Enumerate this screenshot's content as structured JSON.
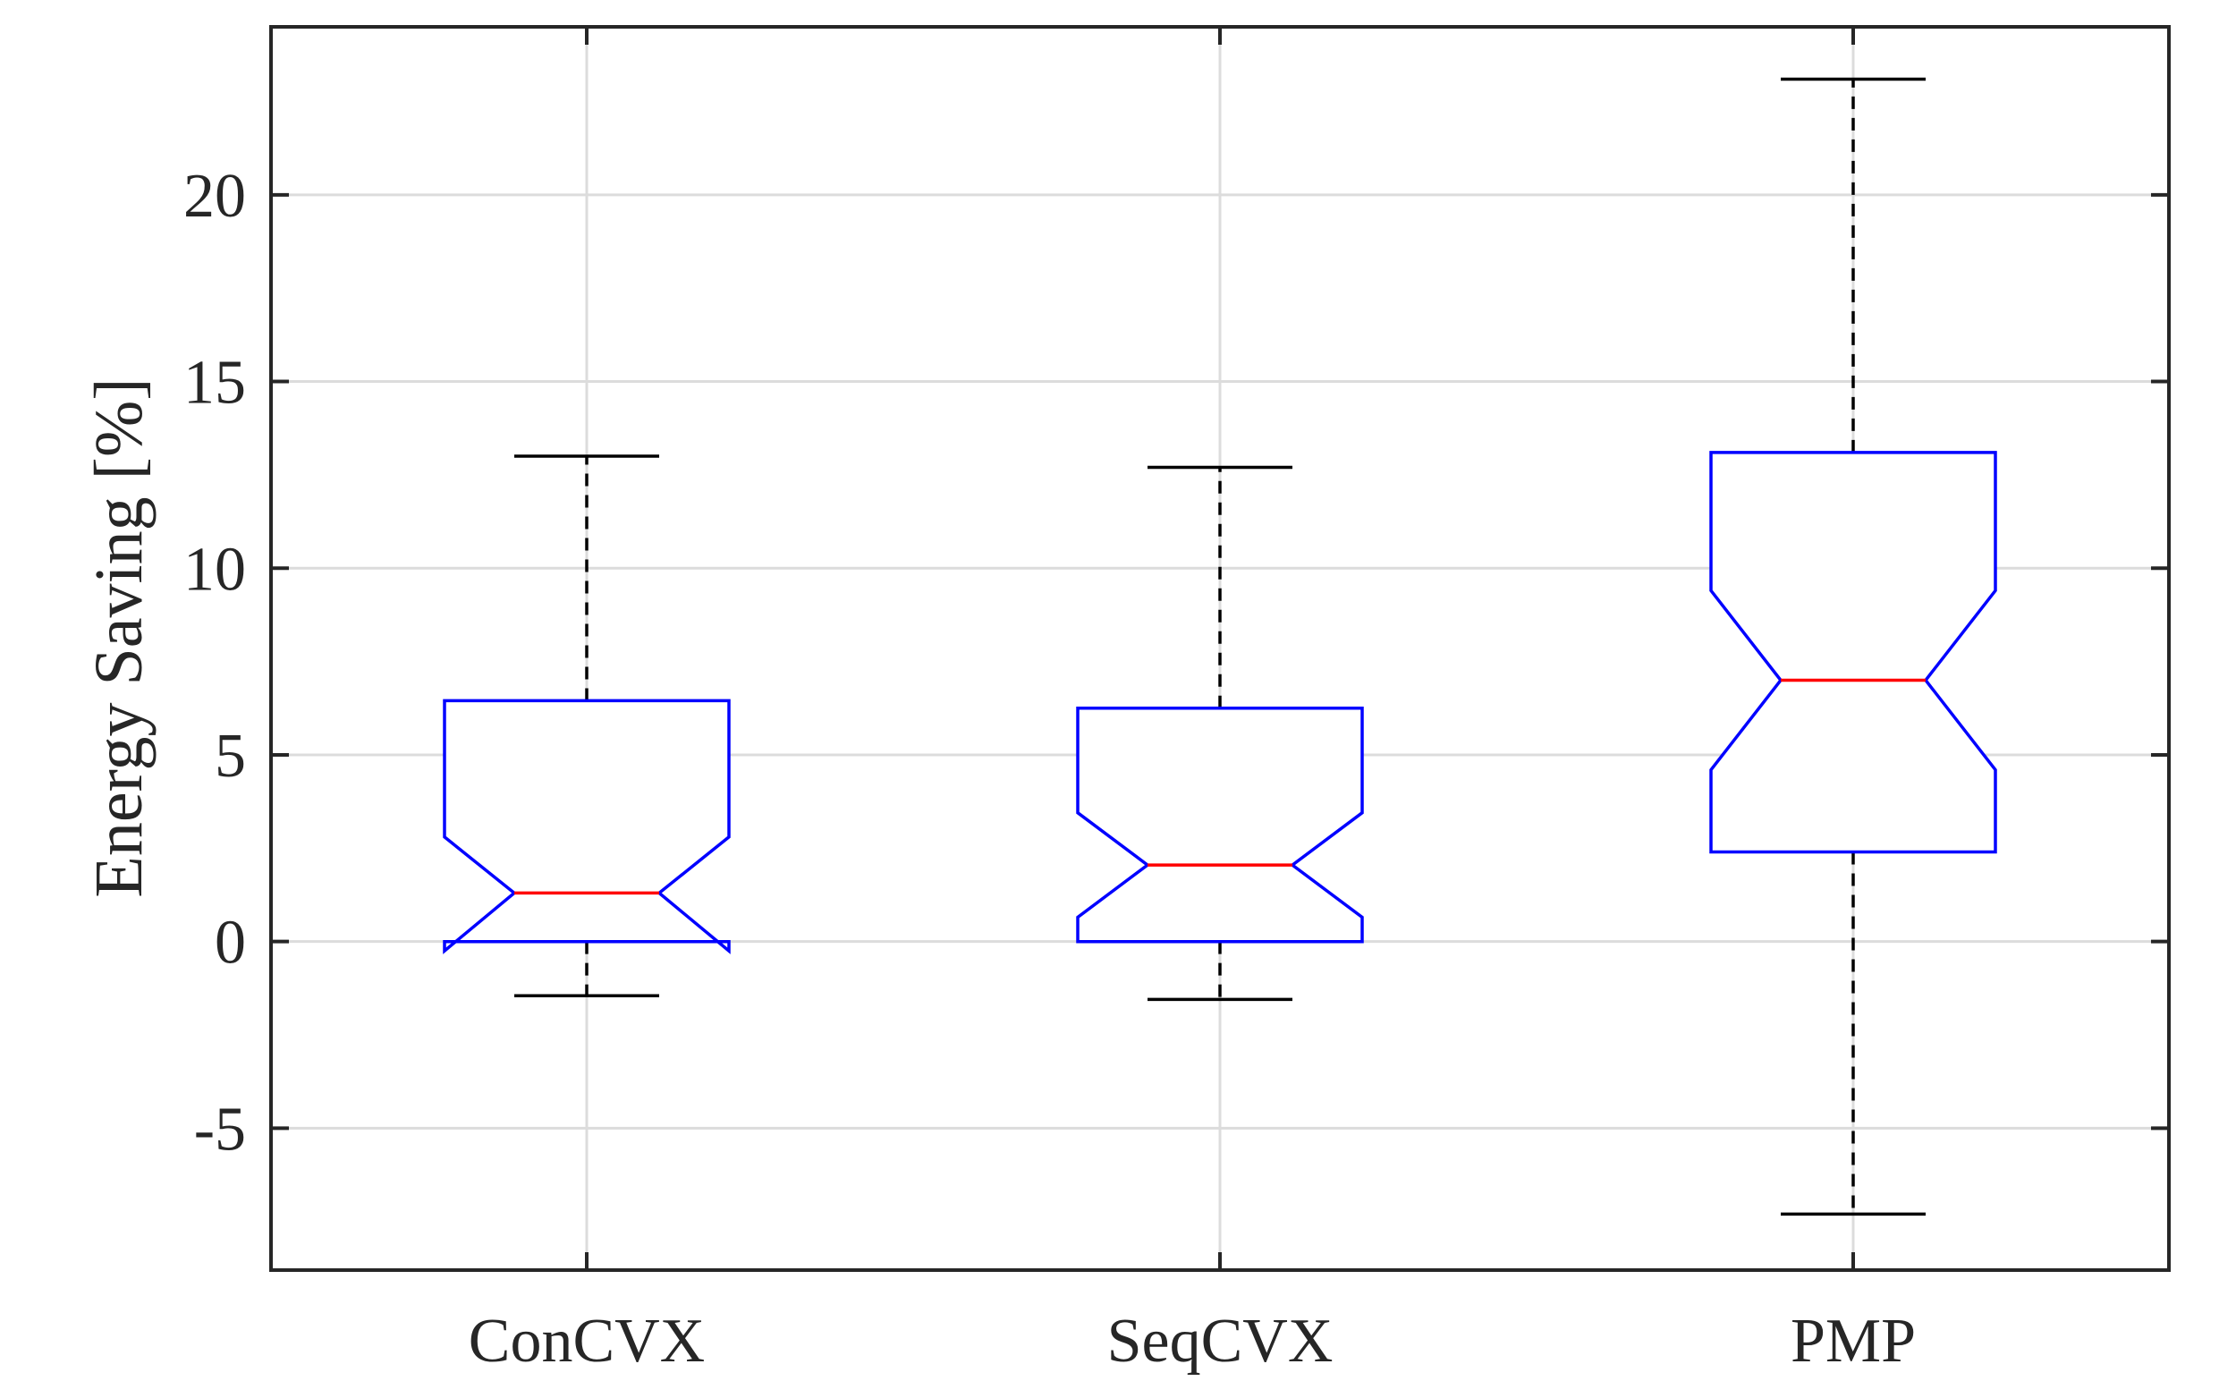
{
  "chart_data": {
    "type": "box",
    "title": "",
    "xlabel": "",
    "ylabel": "Energy Saving [%]",
    "ylim": [
      -8.8,
      24.5
    ],
    "yticks": [
      -5,
      0,
      5,
      10,
      15,
      20
    ],
    "ytick_labels": [
      "-5",
      "0",
      "5",
      "10",
      "15",
      "20"
    ],
    "grid": true,
    "notched": true,
    "categories": [
      "ConCVX",
      "SeqCVX",
      "PMP"
    ],
    "boxes": [
      {
        "category": "ConCVX",
        "whisker_low": -1.45,
        "q1": 0.0,
        "median": 1.3,
        "q3": 6.45,
        "whisker_high": 13.0,
        "notch_low": -0.25,
        "notch_high": 2.8
      },
      {
        "category": "SeqCVX",
        "whisker_low": -1.55,
        "q1": 0.0,
        "median": 2.05,
        "q3": 6.25,
        "whisker_high": 12.7,
        "notch_low": 0.65,
        "notch_high": 3.45
      },
      {
        "category": "PMP",
        "whisker_low": -7.3,
        "q1": 2.4,
        "median": 7.0,
        "q3": 13.1,
        "whisker_high": 23.1,
        "notch_low": 4.6,
        "notch_high": 9.4
      }
    ],
    "colors": {
      "box": "#0000ff",
      "median": "#ff0000",
      "whisker": "#000000",
      "grid": "#dcdcdc",
      "axis": "#262626"
    }
  }
}
